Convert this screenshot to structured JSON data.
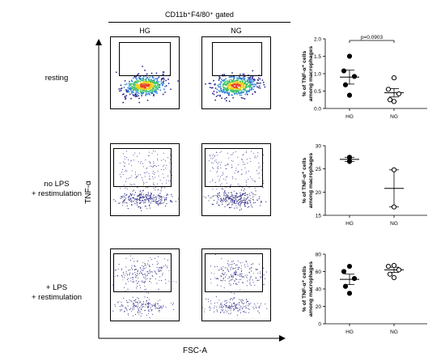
{
  "header": {
    "gating_label": "CD11b⁺F4/80⁺ gated"
  },
  "columns": [
    "HG",
    "NG"
  ],
  "rows": [
    {
      "label_lines": [
        "resting"
      ]
    },
    {
      "label_lines": [
        "no LPS",
        "+ restimulation"
      ]
    },
    {
      "label_lines": [
        "+ LPS",
        "+ restimulation"
      ]
    }
  ],
  "axes": {
    "y_label": "TNF-α",
    "x_label": "FSC-A"
  },
  "chart_data": [
    {
      "type": "scatter",
      "title": "",
      "ylabel": "% of TNF-α⁺ cells\namong macrophages",
      "categories": [
        "HG",
        "NG"
      ],
      "ylim": [
        0,
        2.0
      ],
      "yticks": [
        "0.0",
        "0.5",
        "1.0",
        "1.5",
        "2.0"
      ],
      "annotation": "p=0.0903",
      "series": [
        {
          "category": "HG",
          "marker": "filled",
          "values": [
            1.5,
            1.08,
            0.92,
            0.68,
            0.38
          ],
          "mean": 0.9,
          "sem": 0.2
        },
        {
          "category": "NG",
          "marker": "open",
          "values": [
            0.88,
            0.55,
            0.42,
            0.25,
            0.2
          ],
          "mean": 0.45,
          "sem": 0.12
        }
      ]
    },
    {
      "type": "scatter",
      "title": "",
      "ylabel": "% of TNF-α⁺ cells\namong macrophages",
      "categories": [
        "HG",
        "NG"
      ],
      "ylim": [
        15,
        30
      ],
      "yticks": [
        "15",
        "20",
        "25",
        "30"
      ],
      "series": [
        {
          "category": "HG",
          "marker": "filled",
          "values": [
            27.5,
            26.6
          ],
          "mean": 27.05,
          "sem": 0.45
        },
        {
          "category": "NG",
          "marker": "open",
          "values": [
            24.8,
            16.8
          ],
          "mean": 20.8,
          "sem": 4.0
        }
      ]
    },
    {
      "type": "scatter",
      "title": "",
      "ylabel": "% of TNF-α⁺ cells\namong macrophages",
      "categories": [
        "HG",
        "NG"
      ],
      "ylim": [
        0,
        80
      ],
      "yticks": [
        "0",
        "20",
        "40",
        "60",
        "80"
      ],
      "series": [
        {
          "category": "HG",
          "marker": "filled",
          "values": [
            66,
            60,
            52,
            43,
            35
          ],
          "mean": 51,
          "sem": 6
        },
        {
          "category": "NG",
          "marker": "open",
          "values": [
            67,
            66,
            62,
            57,
            53
          ],
          "mean": 62,
          "sem": 3
        }
      ]
    }
  ],
  "flow_density": {
    "resting": "high-density-low-cluster",
    "no_lps": "low-band-plus-sparse",
    "lps": "two-clusters"
  },
  "colors": {
    "hot": "#e8402a",
    "warm": "#f2d21e",
    "mid": "#3ec46a",
    "cool": "#2a7fd4",
    "cold": "#27248e"
  }
}
